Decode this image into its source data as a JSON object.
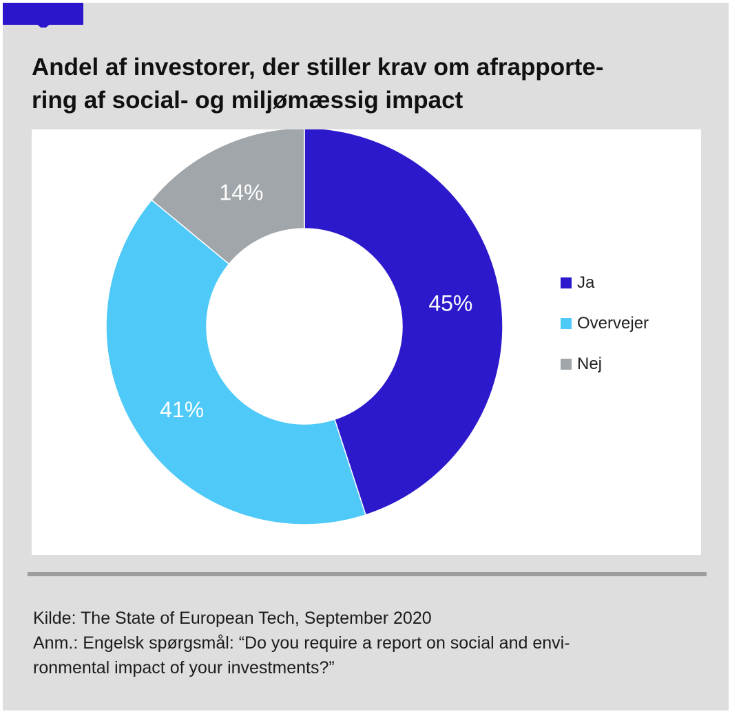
{
  "title": "Andel af investorer, der stiller krav om afrapporte-\nring af social- og miljømæssig impact",
  "colors": {
    "accent": "#2b16cc",
    "frame": "#dedede",
    "divider": "#9d9d9d"
  },
  "chart_data": {
    "type": "pie",
    "subtype": "donut",
    "title": "Andel af investorer, der stiller krav om afrapportering af social- og miljømæssig impact",
    "start_angle_deg": 0,
    "direction": "clockwise",
    "slices": [
      {
        "label": "Ja",
        "value": 45,
        "display": "45%",
        "color": "#2c19cc"
      },
      {
        "label": "Overvejer",
        "value": 41,
        "display": "41%",
        "color": "#4fc9f8"
      },
      {
        "label": "Nej",
        "value": 14,
        "display": "14%",
        "color": "#a0a6aa"
      }
    ],
    "legend_position": "right",
    "unit": "%"
  },
  "footer": {
    "source": "Kilde: The State of European Tech, September 2020",
    "note": "Anm.: Engelsk spørgsmål: “Do you require a report on social and envi-\nronmental impact of your investments?”"
  }
}
